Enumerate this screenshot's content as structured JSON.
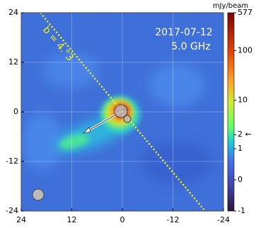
{
  "chart_data": {
    "type": "image",
    "annotations": [
      "2017-07-12",
      "5.0 GHz",
      "b = 4.°3"
    ],
    "xlim": [
      24,
      -24
    ],
    "xticks": [
      24,
      12,
      0,
      -12,
      -24
    ],
    "ylim": [
      -24,
      24
    ],
    "yticks": [
      -24,
      -12,
      0,
      12,
      24
    ],
    "grid": true,
    "colorbar": {
      "label": "mJy/beam",
      "lim": [
        -1,
        577
      ],
      "ticks": [
        577,
        100,
        10,
        {
          "value": 2,
          "label": "2 ←"
        },
        1,
        0,
        -1
      ]
    }
  }
}
